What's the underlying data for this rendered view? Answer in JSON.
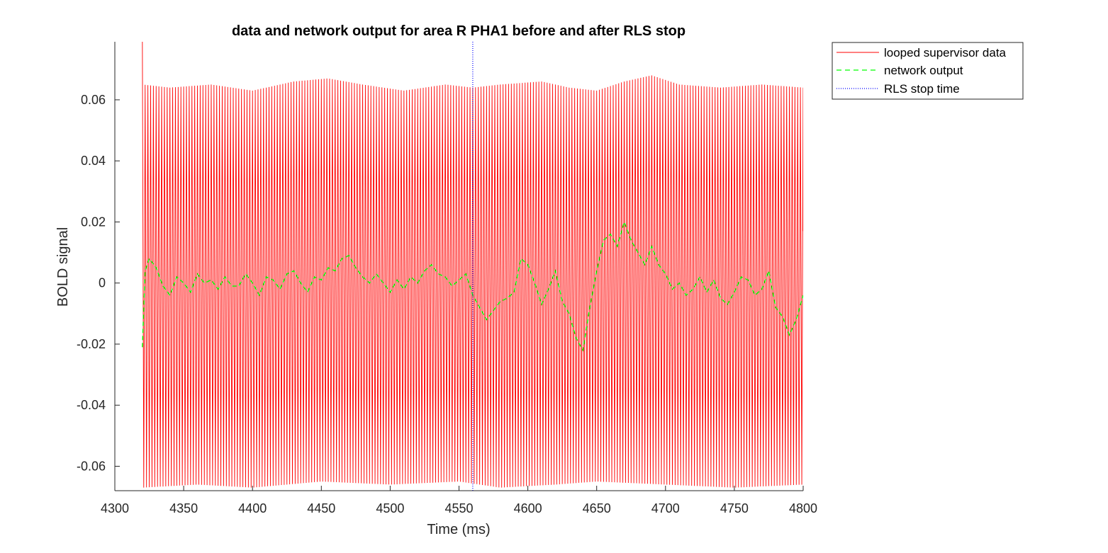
{
  "chart_data": {
    "type": "line",
    "title": "data and network output for area R PHA1 before and after RLS stop",
    "xlabel": "Time (ms)",
    "ylabel": "BOLD signal",
    "xlim": [
      4300,
      4800
    ],
    "ylim": [
      -0.068,
      0.079
    ],
    "x_ticks": [
      4300,
      4350,
      4400,
      4450,
      4500,
      4550,
      4600,
      4650,
      4700,
      4750,
      4800
    ],
    "y_ticks": [
      -0.06,
      -0.04,
      -0.02,
      0,
      0.02,
      0.04,
      0.06
    ],
    "x_tick_labels": [
      "4300",
      "4350",
      "4400",
      "4450",
      "4500",
      "4550",
      "4600",
      "4650",
      "4700",
      "4750",
      "4800"
    ],
    "y_tick_labels": [
      "-0.06",
      "-0.04",
      "-0.02",
      "0",
      "0.02",
      "0.04",
      "0.06"
    ],
    "grid": false,
    "legend_position": "outside-top-right",
    "legend": [
      "looped supervisor data",
      "network output",
      "RLS stop time"
    ],
    "series": [
      {
        "name": "looped supervisor data",
        "color": "#ff0000",
        "style": "solid",
        "x_start": 4320,
        "x_end": 4800,
        "period": 2.0,
        "first_peak": 0.079,
        "peak_envelope": {
          "x": [
            4320,
            4340,
            4370,
            4400,
            4430,
            4455,
            4480,
            4510,
            4540,
            4560,
            4580,
            4610,
            4630,
            4650,
            4670,
            4690,
            4710,
            4740,
            4770,
            4800
          ],
          "y": [
            0.065,
            0.064,
            0.065,
            0.063,
            0.066,
            0.067,
            0.065,
            0.063,
            0.065,
            0.064,
            0.065,
            0.066,
            0.064,
            0.063,
            0.066,
            0.068,
            0.065,
            0.064,
            0.065,
            0.064
          ]
        },
        "trough_envelope": {
          "x": [
            4320,
            4360,
            4400,
            4450,
            4500,
            4550,
            4580,
            4620,
            4650,
            4700,
            4750,
            4800
          ],
          "y": [
            -0.067,
            -0.066,
            -0.067,
            -0.065,
            -0.066,
            -0.065,
            -0.067,
            -0.066,
            -0.065,
            -0.066,
            -0.067,
            -0.066
          ]
        }
      },
      {
        "name": "network output",
        "color": "#00ff00",
        "style": "dashed",
        "x": [
          4320,
          4322,
          4325,
          4330,
          4335,
          4340,
          4345,
          4350,
          4355,
          4360,
          4365,
          4370,
          4375,
          4380,
          4385,
          4390,
          4395,
          4400,
          4405,
          4410,
          4415,
          4420,
          4425,
          4430,
          4435,
          4440,
          4445,
          4450,
          4455,
          4460,
          4465,
          4470,
          4475,
          4480,
          4485,
          4490,
          4495,
          4500,
          4505,
          4510,
          4515,
          4520,
          4525,
          4530,
          4535,
          4540,
          4545,
          4550,
          4555,
          4560,
          4565,
          4570,
          4575,
          4580,
          4585,
          4590,
          4595,
          4600,
          4605,
          4610,
          4615,
          4620,
          4625,
          4630,
          4635,
          4640,
          4645,
          4650,
          4655,
          4660,
          4665,
          4670,
          4675,
          4680,
          4685,
          4690,
          4695,
          4700,
          4705,
          4710,
          4715,
          4720,
          4725,
          4730,
          4735,
          4740,
          4745,
          4750,
          4755,
          4760,
          4765,
          4770,
          4775,
          4780,
          4785,
          4790,
          4795,
          4800
        ],
        "y": [
          -0.021,
          0.004,
          0.008,
          0.005,
          -0.001,
          -0.004,
          0.002,
          0.0,
          -0.003,
          0.003,
          0.0,
          0.001,
          -0.002,
          0.002,
          -0.001,
          -0.001,
          0.003,
          0.0,
          -0.004,
          0.002,
          0.001,
          -0.002,
          0.003,
          0.004,
          0.0,
          -0.003,
          0.002,
          0.001,
          0.005,
          0.004,
          0.008,
          0.009,
          0.005,
          0.002,
          0.0,
          0.003,
          0.0,
          -0.003,
          0.001,
          -0.002,
          0.002,
          0.0,
          0.004,
          0.006,
          0.003,
          0.002,
          -0.001,
          0.001,
          0.003,
          -0.004,
          -0.008,
          -0.012,
          -0.009,
          -0.006,
          -0.005,
          -0.003,
          0.008,
          0.006,
          0.0,
          -0.007,
          -0.002,
          0.004,
          -0.006,
          -0.01,
          -0.018,
          -0.022,
          -0.008,
          0.004,
          0.014,
          0.016,
          0.012,
          0.02,
          0.014,
          0.01,
          0.006,
          0.012,
          0.006,
          0.003,
          -0.002,
          0.0,
          -0.004,
          -0.002,
          0.002,
          -0.003,
          0.001,
          -0.005,
          -0.007,
          -0.003,
          0.002,
          0.001,
          -0.004,
          -0.002,
          0.004,
          -0.008,
          -0.011,
          -0.017,
          -0.012,
          -0.004
        ]
      },
      {
        "name": "RLS stop time",
        "color": "#0000ff",
        "style": "dotted",
        "type": "vertical_line",
        "x": 4560
      }
    ]
  }
}
